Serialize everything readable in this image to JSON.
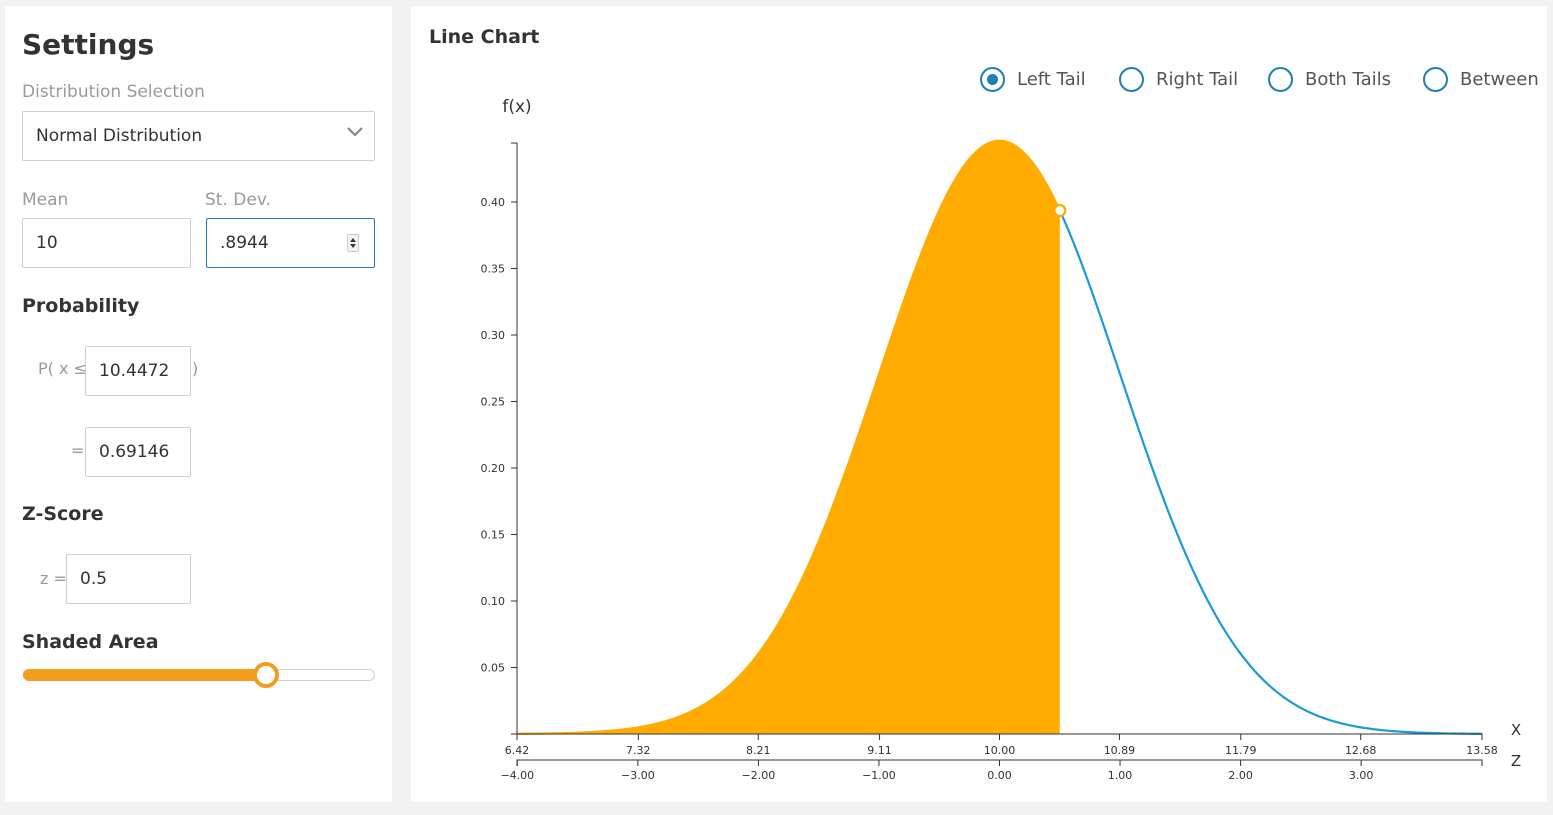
{
  "settings": {
    "title": "Settings",
    "distribution_label": "Distribution Selection",
    "distribution_value": "Normal Distribution",
    "mean_label": "Mean",
    "mean_value": "10",
    "sd_label": "St. Dev.",
    "sd_value": ".8944",
    "probability_heading": "Probability",
    "prob_prefix": "P( x ≤",
    "prob_x_value": "10.4472",
    "prob_suffix": ")",
    "equals": "=",
    "prob_result": "0.69146",
    "zscore_heading": "Z-Score",
    "z_prefix": "z =",
    "z_value": "0.5",
    "shaded_heading": "Shaded Area",
    "shaded_fraction": 0.69146
  },
  "chart_panel": {
    "title": "Line Chart",
    "tail_options": [
      {
        "label": "Left Tail",
        "selected": true
      },
      {
        "label": "Right Tail",
        "selected": false
      },
      {
        "label": "Both Tails",
        "selected": false
      },
      {
        "label": "Between",
        "selected": false
      }
    ]
  },
  "colors": {
    "accent": "#1f7fb0",
    "shade": "#ffab00",
    "curve": "#1a9ad6",
    "slider": "#f39c1e"
  },
  "chart_data": {
    "type": "area",
    "mean": 10,
    "sd": 0.8944,
    "shade_to_x": 10.4472,
    "shade_side": "left",
    "ylabel": "f(x)",
    "xlabel": "X",
    "z_axis_label": "Z",
    "xlim": [
      6.42,
      13.58
    ],
    "y_ticks": [
      0.05,
      0.1,
      0.15,
      0.2,
      0.25,
      0.3,
      0.35,
      0.4
    ],
    "y_tick_labels": [
      "0.05",
      "0.10",
      "0.15",
      "0.20",
      "0.25",
      "0.30",
      "0.35",
      "0.40"
    ],
    "x_ticks": [
      6.42,
      7.32,
      8.21,
      9.11,
      10.0,
      10.89,
      11.79,
      12.68,
      13.58
    ],
    "x_tick_labels": [
      "6.42",
      "7.32",
      "8.21",
      "9.11",
      "10.00",
      "10.89",
      "11.79",
      "12.68",
      "13.58"
    ],
    "z_ticks": [
      -4,
      -3,
      -2,
      -1,
      0,
      1,
      2,
      3
    ],
    "z_tick_labels": [
      "−4.00",
      "−3.00",
      "−2.00",
      "−1.00",
      "0.00",
      "1.00",
      "2.00",
      "3.00"
    ]
  }
}
